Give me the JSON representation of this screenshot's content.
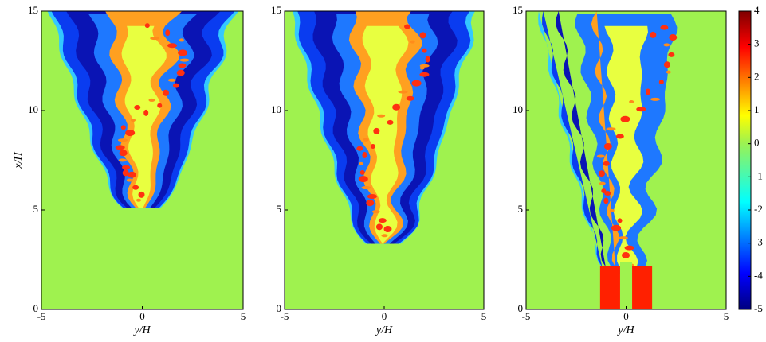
{
  "chart_data": [
    {
      "type": "contour",
      "xlabel": "y/H",
      "ylabel": "x/H",
      "xlim": [
        -5,
        5
      ],
      "ylim": [
        0,
        15
      ],
      "xticks": [
        -5,
        0,
        5
      ],
      "yticks": [
        0,
        5,
        10,
        15
      ]
    },
    {
      "type": "contour",
      "xlabel": "y/H",
      "xlim": [
        -5,
        5
      ],
      "ylim": [
        0,
        15
      ],
      "xticks": [
        -5,
        0,
        5
      ],
      "yticks": [
        0,
        5,
        10,
        15
      ]
    },
    {
      "type": "contour",
      "xlabel": "y/H",
      "xlim": [
        -5,
        5
      ],
      "ylim": [
        0,
        15
      ],
      "xticks": [
        -5,
        0,
        5
      ],
      "yticks": [
        0,
        5,
        10,
        15
      ]
    },
    {
      "type": "colorbar",
      "ylim": [
        -5,
        4
      ],
      "yticks": [
        -5,
        -4,
        -3,
        -2,
        -1,
        0,
        1,
        2,
        3,
        4
      ]
    }
  ]
}
